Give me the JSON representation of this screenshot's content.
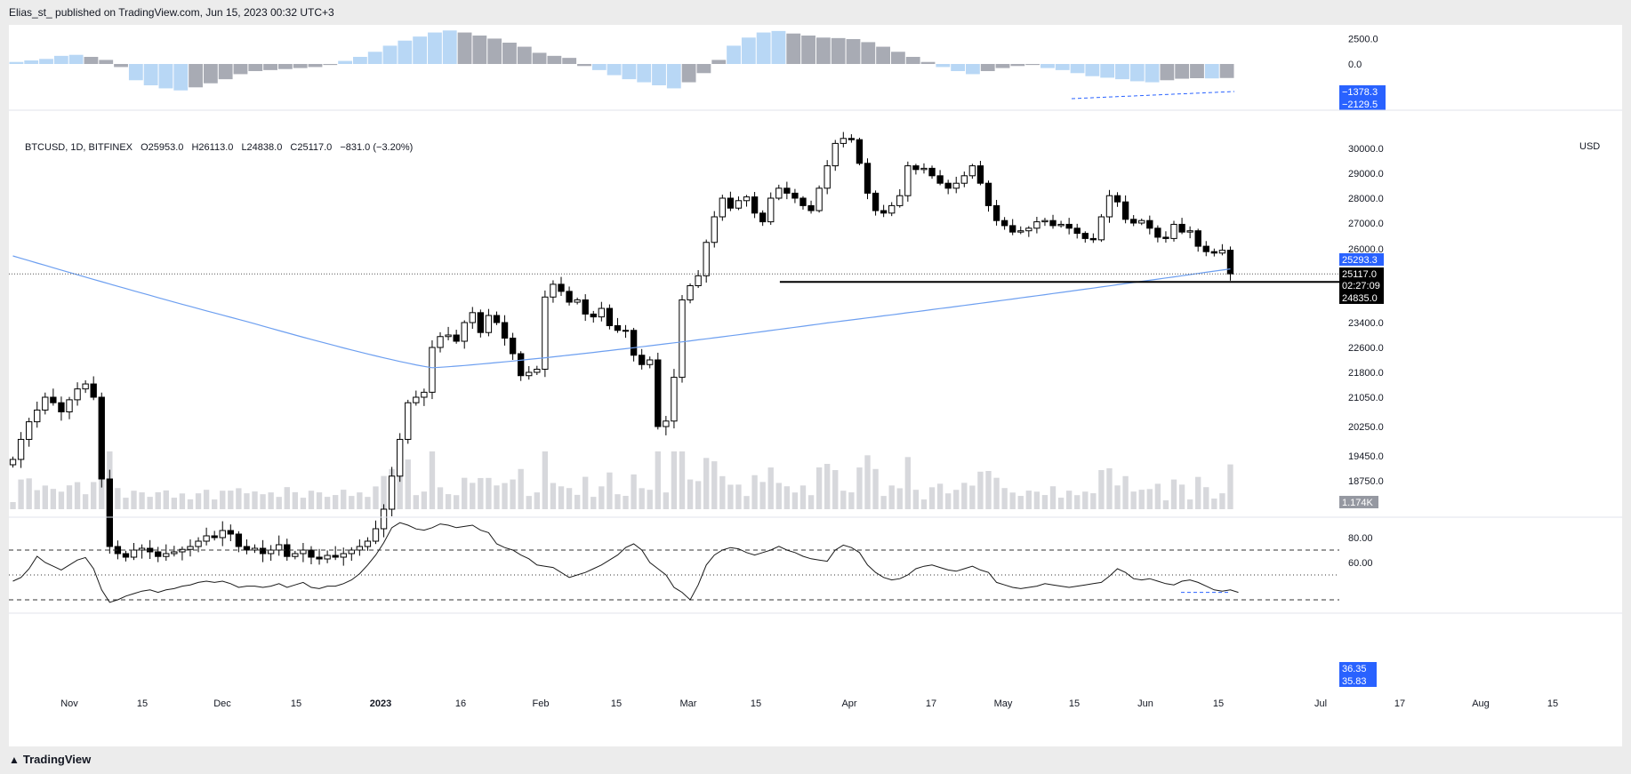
{
  "header": {
    "published": "Elias_st_ published on TradingView.com, Jun 15, 2023 00:32 UTC+3"
  },
  "footer": {
    "brand": "TradingView"
  },
  "symbol_legend": {
    "symbol": "BTCUSD, 1D, BITFINEX",
    "open": "O25953.0",
    "high": "H26113.0",
    "low": "L24838.0",
    "close": "C25117.0",
    "change": "−831.0 (−3.20%)"
  },
  "currency": "USD",
  "colors": {
    "up": "#ffffff",
    "down": "#000000",
    "ma": "#6d9ff0",
    "hist_light": "#b8d7f5",
    "hist_grey": "#a8abb4",
    "vol": "#d7d8dc",
    "badge_blue": "#2962ff",
    "rsi": "#1a1a1a"
  },
  "chart_data": [
    {
      "type": "histogram",
      "name": "momentum",
      "y_ticks": [
        "2500.0",
        "0.0"
      ],
      "last_labels": [
        "−1378.3",
        "−2129.5"
      ],
      "ylim": [
        -3500,
        3500
      ],
      "values": [
        200,
        350,
        500,
        800,
        900,
        700,
        400,
        -300,
        -1600,
        -2100,
        -2400,
        -2600,
        -2300,
        -1900,
        -1500,
        -1000,
        -700,
        -600,
        -500,
        -400,
        -300,
        -100,
        300,
        700,
        1200,
        1800,
        2300,
        2700,
        3100,
        3300,
        3100,
        2800,
        2500,
        2100,
        1700,
        1100,
        800,
        600,
        -200,
        -600,
        -1100,
        -1500,
        -1800,
        -2100,
        -2400,
        -1800,
        -900,
        400,
        1800,
        2600,
        3100,
        3250,
        3000,
        2800,
        2600,
        2550,
        2450,
        2150,
        1700,
        1200,
        700,
        200,
        -300,
        -700,
        -1000,
        -700,
        -400,
        -200,
        -100,
        -400,
        -600,
        -900,
        -1200,
        -1350,
        -1500,
        -1700,
        -1800,
        -1600,
        -1450,
        -1400,
        -1420,
        -1380
      ]
    },
    {
      "type": "candlestick",
      "name": "BTCUSD",
      "x_ticks": [
        "Nov",
        "15",
        "Dec",
        "15",
        "2023",
        "16",
        "Feb",
        "15",
        "Mar",
        "15",
        "Apr",
        "17",
        "May",
        "15",
        "Jun",
        "15",
        "Jul",
        "17",
        "Aug",
        "15"
      ],
      "y_ticks": [
        "30000.0",
        "29000.0",
        "28000.0",
        "27000.0",
        "26000.0",
        "23400.0",
        "22600.0",
        "21800.0",
        "21050.0",
        "20250.0",
        "19450.0",
        "18750.0"
      ],
      "price_badges": [
        {
          "text": "25293.3",
          "value": 25293.3,
          "style": "ma"
        },
        {
          "text": "25117.0",
          "value": 25117.0,
          "style": "last"
        },
        {
          "text": "02:27:09",
          "value": 24950,
          "style": "last"
        },
        {
          "text": "24835.0",
          "value": 24835.0,
          "style": "line"
        }
      ],
      "volume_badge": "1.174K",
      "horizontal_line": 24835.0,
      "last_close_line": 25117.0,
      "closes": [
        19350,
        19900,
        20380,
        20700,
        21050,
        20900,
        20650,
        20980,
        21300,
        21450,
        21050,
        18800,
        16900,
        16700,
        16600,
        16800,
        16850,
        16750,
        16620,
        16700,
        16750,
        16820,
        16900,
        17050,
        17200,
        17150,
        17350,
        17250,
        16900,
        16800,
        16850,
        16700,
        16800,
        16950,
        16620,
        16700,
        16800,
        16600,
        16550,
        16650,
        16600,
        16700,
        16800,
        16900,
        17050,
        17400,
        17950,
        18880,
        19900,
        20900,
        21050,
        21200,
        22600,
        22950,
        23000,
        22800,
        23400,
        23750,
        23080,
        23650,
        23400,
        22900,
        22400,
        21700,
        21800,
        21900,
        24300,
        24750,
        24500,
        24120,
        24200,
        23700,
        23600,
        23900,
        23300,
        23150,
        23150,
        22350,
        22050,
        22200,
        20250,
        20400,
        21650,
        24200,
        24700,
        25050,
        26250,
        27250,
        28000,
        27600,
        27900,
        28050,
        27400,
        27050,
        28000,
        28400,
        28200,
        28000,
        27700,
        27500,
        28400,
        29300,
        30200,
        30400,
        30350,
        29400,
        28200,
        27500,
        27400,
        27700,
        28100,
        29300,
        29150,
        29200,
        28900,
        28600,
        28400,
        28600,
        28900,
        29300,
        28600,
        27700,
        27100,
        26900,
        26650,
        26700,
        26800,
        27050,
        27100,
        26900,
        26950,
        26800,
        26600,
        26400,
        26350,
        27250,
        28100,
        27850,
        27150,
        27000,
        27100,
        26800,
        26450,
        26400,
        26950,
        26650,
        26700,
        26100,
        25900,
        25850,
        25950,
        25117
      ],
      "ma_start": 25750,
      "ma_min": 21950,
      "ma_min_index": 52,
      "ma_end": 25293.3
    },
    {
      "type": "line",
      "name": "RSI",
      "y_ticks": [
        "80.00",
        "60.00"
      ],
      "last_labels": [
        "36.35",
        "35.83"
      ],
      "levels": [
        70,
        50,
        30
      ],
      "ylim": [
        25,
        95
      ],
      "values": [
        45,
        48,
        55,
        65,
        60,
        57,
        54,
        58,
        62,
        64,
        55,
        38,
        28,
        30,
        33,
        35,
        37,
        38,
        36,
        38,
        39,
        41,
        42,
        44,
        45,
        44,
        45,
        43,
        40,
        41,
        41,
        40,
        41,
        43,
        40,
        42,
        44,
        40,
        39,
        41,
        41,
        43,
        46,
        51,
        58,
        66,
        76,
        88,
        92,
        90,
        87,
        86,
        88,
        91,
        90,
        88,
        89,
        90,
        86,
        84,
        75,
        72,
        70,
        66,
        63,
        58,
        57,
        56,
        52,
        48,
        50,
        52,
        55,
        58,
        62,
        66,
        72,
        75,
        70,
        60,
        55,
        50,
        40,
        36,
        30,
        42,
        58,
        66,
        70,
        72,
        71,
        68,
        66,
        68,
        70,
        73,
        70,
        68,
        65,
        63,
        62,
        61,
        70,
        74,
        72,
        68,
        58,
        52,
        48,
        46,
        47,
        50,
        55,
        57,
        58,
        56,
        54,
        53,
        55,
        57,
        54,
        52,
        44,
        42,
        40,
        39,
        40,
        41,
        43,
        42,
        41,
        40,
        41,
        42,
        43,
        44,
        49,
        55,
        52,
        47,
        46,
        47,
        45,
        43,
        42,
        45,
        46,
        44,
        41,
        38,
        37,
        38,
        36
      ]
    }
  ]
}
